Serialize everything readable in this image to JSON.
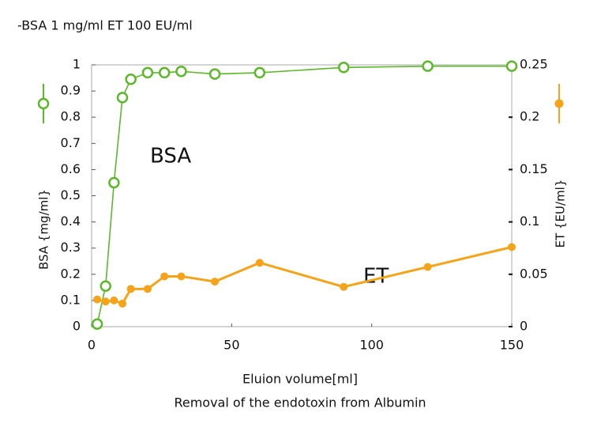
{
  "chart_data": {
    "type": "line",
    "title": "-BSA 1 mg/ml  ET 100  EU/ml",
    "x_label": "Eluion volume[ml]",
    "caption": "Removal of the endotoxin from Albumin",
    "y_label": "BSA {mg/ml}",
    "y2_label": "ET {EU/ml}",
    "x": [
      2,
      5,
      8,
      11,
      14,
      20,
      26,
      32,
      44,
      60,
      90,
      120,
      150
    ],
    "series": [
      {
        "name": "BSA",
        "color": "#5cb82a",
        "marker": "open",
        "values": [
          0.01,
          0.155,
          0.55,
          0.875,
          0.945,
          0.97,
          0.97,
          0.975,
          0.965,
          0.97,
          0.99,
          0.995,
          0.995
        ]
      },
      {
        "name": "ET",
        "color": "#f5a41a",
        "marker": "filled",
        "axis": "y2",
        "values": [
          0.026,
          0.024,
          0.025,
          0.022,
          0.036,
          0.036,
          0.048,
          0.048,
          0.043,
          0.061,
          0.038,
          0.057,
          0.076
        ]
      }
    ],
    "xlim": [
      0,
      150
    ],
    "xticks": [
      0,
      50,
      100,
      150
    ],
    "ylim": [
      0,
      1
    ],
    "yticks": [
      0,
      0.1,
      0.2,
      0.3,
      0.4,
      0.5,
      0.6,
      0.7,
      0.8,
      0.9,
      1
    ],
    "y2lim": [
      0,
      0.25
    ],
    "y2ticks": [
      0,
      0.05,
      0.1,
      0.15,
      0.2,
      0.25
    ],
    "grid": false
  }
}
